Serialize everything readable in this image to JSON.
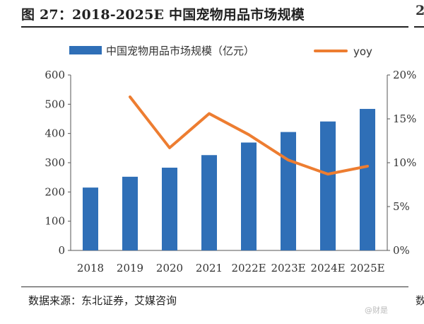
{
  "header": {
    "title": "图 27：2018-2025E 中国宠物用品市场规模",
    "side_fragment_top": "2",
    "side_fragment_bottom": "数"
  },
  "footer": {
    "source": "数据来源：东北证券，艾媒咨询",
    "watermark": "@财是"
  },
  "chart_data": {
    "type": "bar",
    "categories": [
      "2018",
      "2019",
      "2020",
      "2021",
      "2022E",
      "2023E",
      "2024E",
      "2025E"
    ],
    "series": [
      {
        "name": "中国宠物用品市场规模（亿元）",
        "type": "bar",
        "axis": "left",
        "color": "#2f6fb7",
        "values": [
          215,
          252,
          283,
          326,
          369,
          405,
          441,
          484
        ]
      },
      {
        "name": "yoy",
        "type": "line",
        "axis": "right",
        "color": "#ed7d31",
        "values": [
          null,
          17.5,
          11.7,
          15.6,
          13.2,
          10.3,
          8.7,
          9.6
        ]
      }
    ],
    "y_left": {
      "ylim": [
        0,
        600
      ],
      "ticks": [
        "0",
        "100",
        "200",
        "300",
        "400",
        "500",
        "600"
      ]
    },
    "y_right": {
      "ylim": [
        0,
        20
      ],
      "ticks": [
        "0%",
        "5%",
        "10%",
        "15%",
        "20%"
      ]
    },
    "grid": false,
    "legend": "top"
  }
}
